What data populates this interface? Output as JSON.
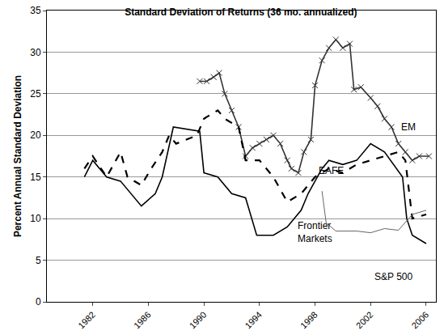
{
  "chart_data": {
    "type": "line",
    "title": "Standard Deviation of Returns (36 mo. annualized)",
    "y_label": "Percent Annual Standard Deviation",
    "xlim": [
      1978.7,
      2006.7
    ],
    "xticks": [
      1982,
      1986,
      1990,
      1994,
      1998,
      2002,
      2006
    ],
    "ylim": [
      0,
      35
    ],
    "yticks": [
      0,
      5,
      10,
      15,
      20,
      25,
      30,
      35
    ],
    "grid": true,
    "series": [
      {
        "name": "EM",
        "color": "#333333",
        "line_style": "solid",
        "marker": "x",
        "x": [
          1989.7,
          1990.2,
          1990.7,
          1991.1,
          1991.5,
          1992.0,
          1992.5,
          1993.0,
          1993.5,
          1994.0,
          1994.5,
          1995.0,
          1995.5,
          1996.0,
          1996.3,
          1996.8,
          1997.2,
          1997.7,
          1998.0,
          1998.5,
          1999.0,
          1999.5,
          2000.0,
          2000.5,
          2000.8,
          2001.3,
          2002.0,
          2002.5,
          2003.0,
          2003.5,
          2004.0,
          2004.5,
          2005.0,
          2005.5,
          2006.2
        ],
        "values": [
          26.5,
          26.5,
          27,
          27.5,
          25,
          23,
          21,
          17.5,
          18.5,
          19,
          19.5,
          20,
          19,
          17,
          16,
          15.5,
          18,
          19.5,
          26,
          29,
          30.5,
          31.5,
          30.5,
          31,
          25.5,
          25.8,
          24.5,
          23.5,
          22,
          21,
          19,
          18,
          17,
          17.5,
          17.5
        ]
      },
      {
        "name": "EAFE",
        "color": "#000000",
        "line_style": "dashed",
        "marker": "none",
        "x": [
          1981.4,
          1982.0,
          1983.0,
          1984.0,
          1984.5,
          1985.5,
          1986.2,
          1987.0,
          1987.5,
          1988.0,
          1989.5,
          1990.0,
          1991.0,
          1991.5,
          1992.5,
          1993.0,
          1994.0,
          1995.0,
          1996.0,
          1997.0,
          1998.0,
          1999.0,
          2000.0,
          2001.0,
          2002.0,
          2003.0,
          2004.0,
          2004.5,
          2005.0,
          2006.0
        ],
        "values": [
          16,
          17.5,
          15,
          18,
          15,
          14,
          16,
          18,
          20,
          19,
          20,
          22,
          23,
          22,
          21,
          17,
          17,
          15,
          12,
          13,
          15,
          16,
          15.5,
          16.5,
          17,
          17.5,
          18,
          17,
          10,
          10.5
        ]
      },
      {
        "name": "S&P 500",
        "color": "#000000",
        "line_style": "solid",
        "marker": "none",
        "x": [
          1981.4,
          1982.0,
          1983.0,
          1984.0,
          1985.5,
          1986.5,
          1987.0,
          1987.8,
          1989.7,
          1990.0,
          1991.0,
          1992.0,
          1993.0,
          1993.8,
          1995.0,
          1996.0,
          1997.0,
          1997.5,
          1998.5,
          1999.0,
          2000.0,
          2001.0,
          2002.0,
          2003.0,
          2004.3,
          2004.6,
          2005.0,
          2006.0
        ],
        "values": [
          15,
          17,
          15,
          14.5,
          11.5,
          13,
          15,
          21,
          20.5,
          15.5,
          15,
          13,
          12.5,
          8,
          8,
          9,
          11,
          13,
          16,
          17,
          16.5,
          17,
          19,
          18,
          15,
          10,
          8,
          7
        ]
      },
      {
        "name": "Frontier Markets",
        "color": "#666666",
        "line_style": "solid",
        "marker": "none",
        "x": [
          1998.5,
          1998.8,
          1999.5,
          2000.5,
          2001.0,
          2002.0,
          2003.0,
          2004.0,
          2004.5,
          2005.0,
          2006.0
        ],
        "values": [
          13.3,
          9.5,
          8.5,
          8.5,
          8.5,
          8.3,
          8.8,
          8.6,
          9.5,
          10.5,
          11
        ]
      }
    ]
  }
}
